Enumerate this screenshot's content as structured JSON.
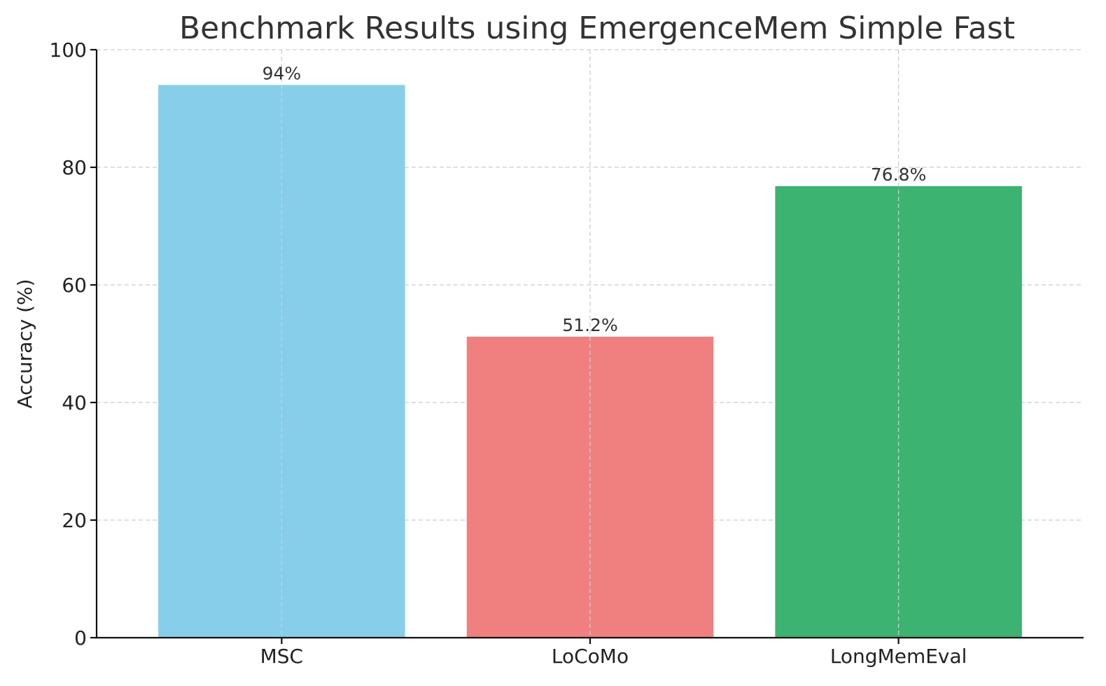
{
  "chart_data": {
    "type": "bar",
    "title": "Benchmark Results using EmergenceMem Simple Fast",
    "xlabel": "",
    "ylabel": "Accuracy (%)",
    "categories": [
      "MSC",
      "LoCoMo",
      "LongMemEval"
    ],
    "values": [
      94,
      51.2,
      76.8
    ],
    "data_labels": [
      "94%",
      "51.2%",
      "76.8%"
    ],
    "colors": [
      "#87CEEB",
      "#F08080",
      "#3CB371"
    ],
    "ylim": [
      0,
      100
    ],
    "yticks": [
      0,
      20,
      40,
      60,
      80,
      100
    ],
    "grid": true
  }
}
